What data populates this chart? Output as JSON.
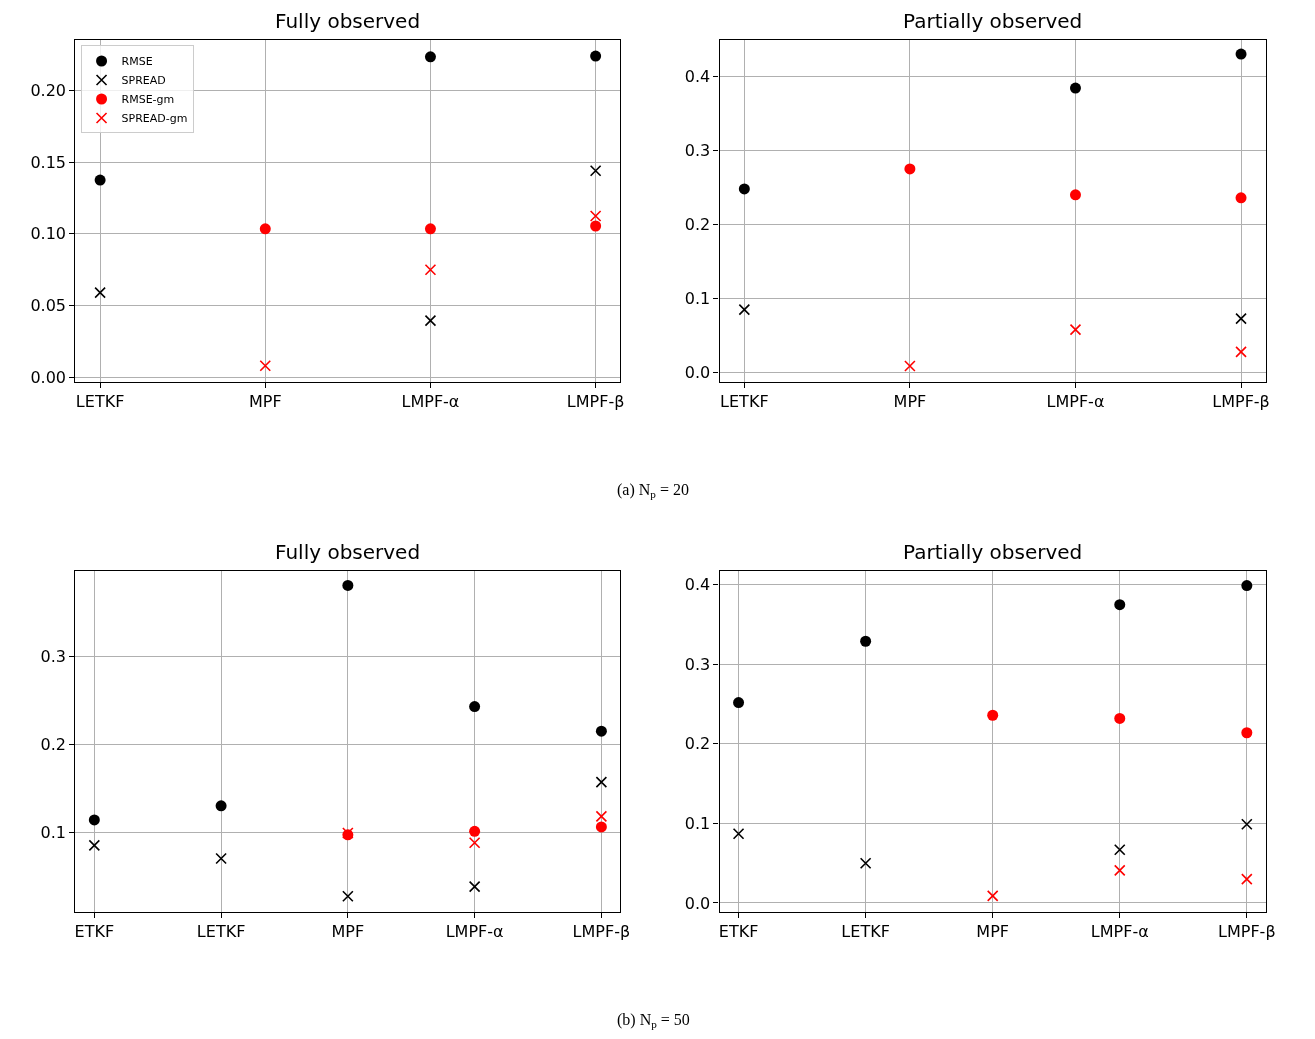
{
  "chart_data": [
    {
      "type": "scatter",
      "title": "Fully observed",
      "categories": [
        "LETKF",
        "MPF",
        "LMPF-α",
        "LMPF-β"
      ],
      "ylim": [
        -0.003,
        0.235
      ],
      "yticks": [
        {
          "value": 0,
          "label": "0.00"
        },
        {
          "value": 0.05,
          "label": "0.05"
        },
        {
          "value": 0.1,
          "label": "0.10"
        },
        {
          "value": 0.15,
          "label": "0.15"
        },
        {
          "value": 0.2,
          "label": "0.20"
        }
      ],
      "grid": true,
      "legend": "top left",
      "annotations": [
        "(a) N$_{p}$ = 20"
      ],
      "series": [
        {
          "name": "RMSE",
          "color": "#000000",
          "marker": "circle",
          "values": [
            0.1375,
            null,
            0.2235,
            0.224
          ]
        },
        {
          "name": "SPREAD",
          "color": "#000000",
          "marker": "cross",
          "values": [
            0.059,
            null,
            0.0395,
            0.144
          ]
        },
        {
          "name": "RMSE-gm",
          "color": "#ff0000",
          "marker": "circle",
          "values": [
            null,
            0.1035,
            0.1035,
            0.1055
          ]
        },
        {
          "name": "SPREAD-gm",
          "color": "#ff0000",
          "marker": "cross",
          "values": [
            null,
            0.008,
            0.075,
            0.1125
          ]
        }
      ]
    },
    {
      "type": "scatter",
      "title": "Partially observed",
      "categories": [
        "LETKF",
        "MPF",
        "LMPF-α",
        "LMPF-β"
      ],
      "ylim": [
        -0.012,
        0.4485
      ],
      "yticks": [
        {
          "value": 0,
          "label": "0.0"
        },
        0.1,
        0.2,
        0.3,
        0.4
      ],
      "grid": true,
      "series": [
        {
          "color": "#000000",
          "marker": "circle",
          "values": [
            0.248,
            null,
            0.384,
            0.43
          ]
        },
        {
          "color": "#000000",
          "marker": "cross",
          "values": [
            0.085,
            null,
            null,
            0.073
          ]
        },
        {
          "color": "#ff0000",
          "marker": "circle",
          "values": [
            null,
            0.275,
            0.24,
            0.236
          ]
        },
        {
          "color": "#ff0000",
          "marker": "cross",
          "values": [
            null,
            0.009,
            0.058,
            0.028
          ]
        }
      ]
    },
    {
      "type": "scatter",
      "title": "Fully observed",
      "categories": [
        "ETKF",
        "LETKF",
        "MPF",
        "LMPF-α",
        "LMPF-β"
      ],
      "ylim": [
        0.0091,
        0.3977
      ],
      "yticks": [
        0.1,
        0.2,
        0.3
      ],
      "grid": true,
      "annotations": [
        "(b) N$_{p}$ = 50"
      ],
      "series": [
        {
          "color": "#000000",
          "marker": "circle",
          "values": [
            0.114,
            0.13,
            0.381,
            0.243,
            0.215
          ]
        },
        {
          "color": "#000000",
          "marker": "cross",
          "values": [
            0.085,
            0.07,
            0.027,
            0.038,
            0.157
          ]
        },
        {
          "color": "#ff0000",
          "marker": "circle",
          "values": [
            null,
            null,
            0.097,
            0.101,
            0.106
          ]
        },
        {
          "color": "#ff0000",
          "marker": "cross",
          "values": [
            null,
            null,
            0.099,
            0.088,
            0.118
          ]
        }
      ]
    },
    {
      "type": "scatter",
      "title": "Partially observed",
      "categories": [
        "ETKF",
        "LETKF",
        "MPF",
        "LMPF-α",
        "LMPF-β"
      ],
      "ylim": [
        -0.0113,
        0.4176
      ],
      "yticks": [
        {
          "value": 0,
          "label": "0.0"
        },
        0.1,
        0.2,
        0.3,
        0.4
      ],
      "grid": true,
      "series": [
        {
          "color": "#000000",
          "marker": "circle",
          "values": [
            0.252,
            0.329,
            null,
            0.375,
            0.399
          ]
        },
        {
          "color": "#000000",
          "marker": "cross",
          "values": [
            0.087,
            0.05,
            null,
            0.067,
            0.099
          ]
        },
        {
          "color": "#ff0000",
          "marker": "circle",
          "values": [
            null,
            null,
            0.236,
            0.232,
            0.214
          ]
        },
        {
          "color": "#ff0000",
          "marker": "cross",
          "values": [
            null,
            null,
            0.009,
            0.041,
            0.03
          ]
        }
      ]
    }
  ]
}
